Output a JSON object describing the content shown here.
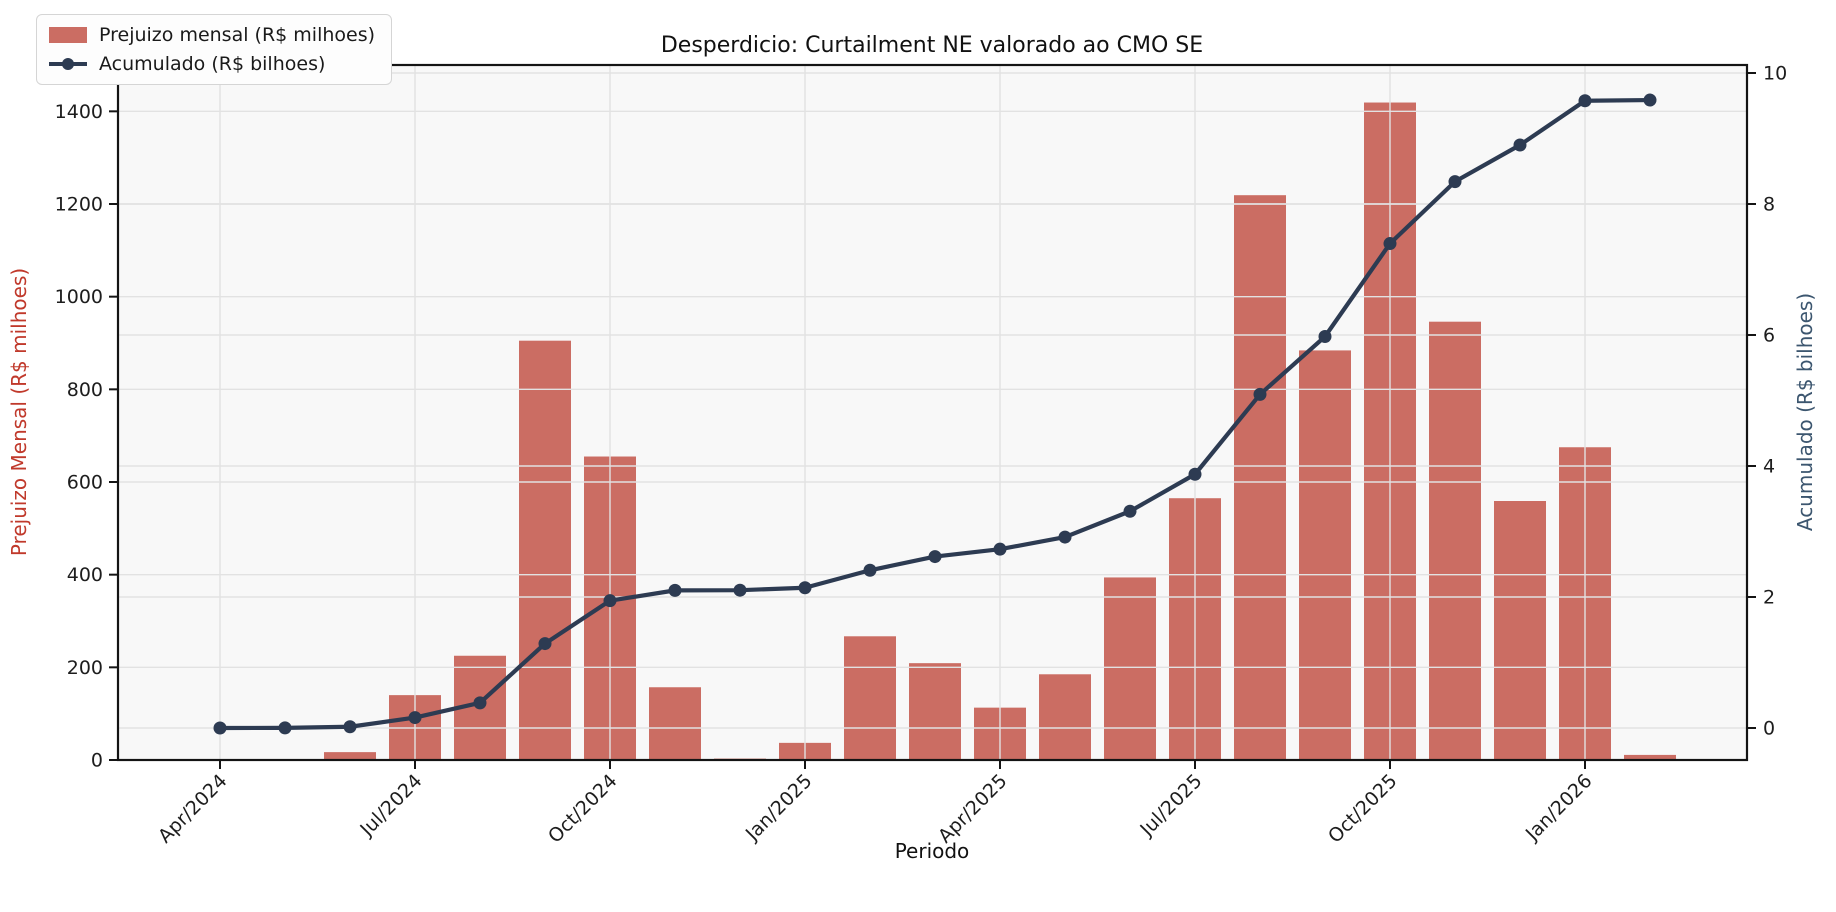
{
  "chart_data": {
    "type": "bar+line-dual-axis",
    "title": "Desperdicio: Curtailment NE valorado ao CMO SE",
    "xlabel": "Periodo",
    "ylabel_left": "Prejuizo Mensal (R$ milhoes)",
    "ylabel_right": "Acumulado (R$ bilhoes)",
    "categories": [
      "Apr/2024",
      "May/2024",
      "Jun/2024",
      "Jul/2024",
      "Aug/2024",
      "Sep/2024",
      "Oct/2024",
      "Nov/2024",
      "Dec/2024",
      "Jan/2025",
      "Feb/2025",
      "Mar/2025",
      "Apr/2025",
      "May/2025",
      "Jun/2025",
      "Jul/2025",
      "Aug/2025",
      "Sep/2025",
      "Oct/2025",
      "Nov/2025",
      "Dec/2025",
      "Jan/2026",
      "Feb/2026"
    ],
    "series": [
      {
        "name": "Prejuizo mensal (R$ milhoes)",
        "type": "bar",
        "axis": "left",
        "values": [
          0,
          2,
          17,
          140,
          225,
          905,
          655,
          157,
          3,
          37,
          267,
          209,
          113,
          185,
          394,
          565,
          1219,
          884,
          1419,
          946,
          559,
          675,
          11
        ]
      },
      {
        "name": "Acumulado (R$ bilhoes)",
        "type": "line",
        "axis": "right",
        "values": [
          0.0,
          0.002,
          0.019,
          0.159,
          0.384,
          1.289,
          1.944,
          2.101,
          2.104,
          2.141,
          2.408,
          2.617,
          2.73,
          2.915,
          3.309,
          3.874,
          5.093,
          5.977,
          7.396,
          8.342,
          8.901,
          9.576,
          9.587
        ]
      }
    ],
    "x_tick_labels": [
      "Apr/2024",
      "Jul/2024",
      "Oct/2024",
      "Jan/2025",
      "Apr/2025",
      "Jul/2025",
      "Oct/2025",
      "Jan/2026"
    ],
    "x_tick_positions": [
      0,
      3,
      6,
      9,
      12,
      15,
      18,
      21
    ],
    "left_ticks": [
      0,
      200,
      400,
      600,
      800,
      1000,
      1200,
      1400
    ],
    "right_ticks": [
      0,
      2,
      4,
      6,
      8,
      10
    ],
    "ylim_left": [
      0,
      1500
    ],
    "ylim_right": [
      -0.49,
      10.16
    ],
    "grid": true,
    "legend_position": "upper left"
  },
  "legend": {
    "items": [
      {
        "label": "Prejuizo mensal (R$ milhoes)",
        "swatch": "bar"
      },
      {
        "label": "Acumulado (R$ bilhoes)",
        "swatch": "line"
      }
    ]
  },
  "colors": {
    "bar": "#cb6d63",
    "line": "#2d3b52",
    "left_label": "#c0392b",
    "right_label": "#3c566f",
    "grid": "#e2e2e2",
    "plot_bg": "#f8f8f8",
    "figure_bg": "#ffffff",
    "spine": "#141414",
    "tick_text": "#1d1d1d"
  }
}
